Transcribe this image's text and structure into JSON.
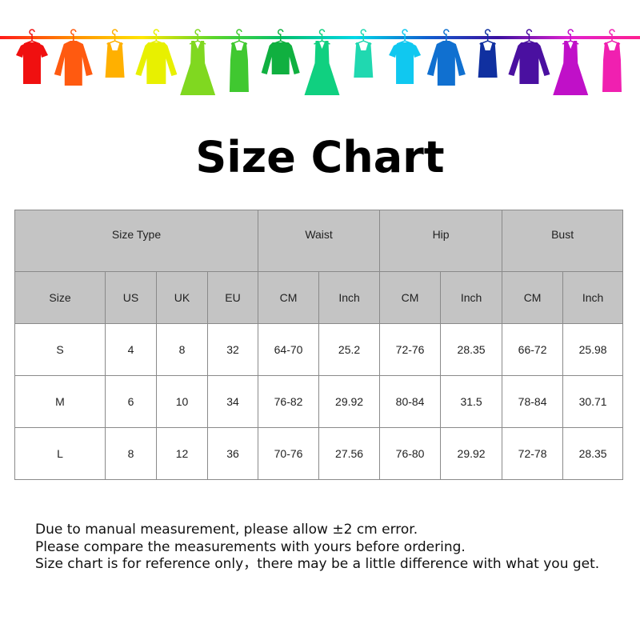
{
  "banner": {
    "rail_colors": [
      "#ff1a1a",
      "#ff8a00",
      "#ffe600",
      "#5cd62a",
      "#00c070",
      "#00d8e8",
      "#1060d0",
      "#3a10a0",
      "#e020d0",
      "#ff2090"
    ],
    "items": [
      {
        "type": "tshirt",
        "color": "#f01010"
      },
      {
        "type": "shirt",
        "color": "#ff5a10"
      },
      {
        "type": "tank",
        "color": "#ffb000"
      },
      {
        "type": "cardigan",
        "color": "#e8f000"
      },
      {
        "type": "dress",
        "color": "#80d820"
      },
      {
        "type": "tank-dress",
        "color": "#40c830"
      },
      {
        "type": "sweater",
        "color": "#10b040"
      },
      {
        "type": "dress",
        "color": "#10d080"
      },
      {
        "type": "tank",
        "color": "#20d8b0"
      },
      {
        "type": "tshirt",
        "color": "#10c8f0"
      },
      {
        "type": "shirt",
        "color": "#1070d0"
      },
      {
        "type": "tank",
        "color": "#1030a0"
      },
      {
        "type": "cardigan",
        "color": "#4a10a0"
      },
      {
        "type": "dress",
        "color": "#c010c8"
      },
      {
        "type": "tank-dress",
        "color": "#f020b0"
      }
    ]
  },
  "title": "Size Chart",
  "table": {
    "group_headers": [
      "Size Type",
      "Waist",
      "Hip",
      "Bust"
    ],
    "sub_headers": [
      "Size",
      "US",
      "UK",
      "EU",
      "CM",
      "Inch",
      "CM",
      "Inch",
      "CM",
      "Inch"
    ],
    "rows": [
      [
        "S",
        "4",
        "8",
        "32",
        "64-70",
        "25.2",
        "72-76",
        "28.35",
        "66-72",
        "25.98"
      ],
      [
        "M",
        "6",
        "10",
        "34",
        "76-82",
        "29.92",
        "80-84",
        "31.5",
        "78-84",
        "30.71"
      ],
      [
        "L",
        "8",
        "12",
        "36",
        "70-76",
        "27.56",
        "76-80",
        "29.92",
        "72-78",
        "28.35"
      ]
    ]
  },
  "notes": [
    "Due to manual measurement, please allow ±2 cm error.",
    "Please compare the measurements with yours before ordering.",
    "Size chart is for reference only，there may be a little difference with what you get."
  ]
}
